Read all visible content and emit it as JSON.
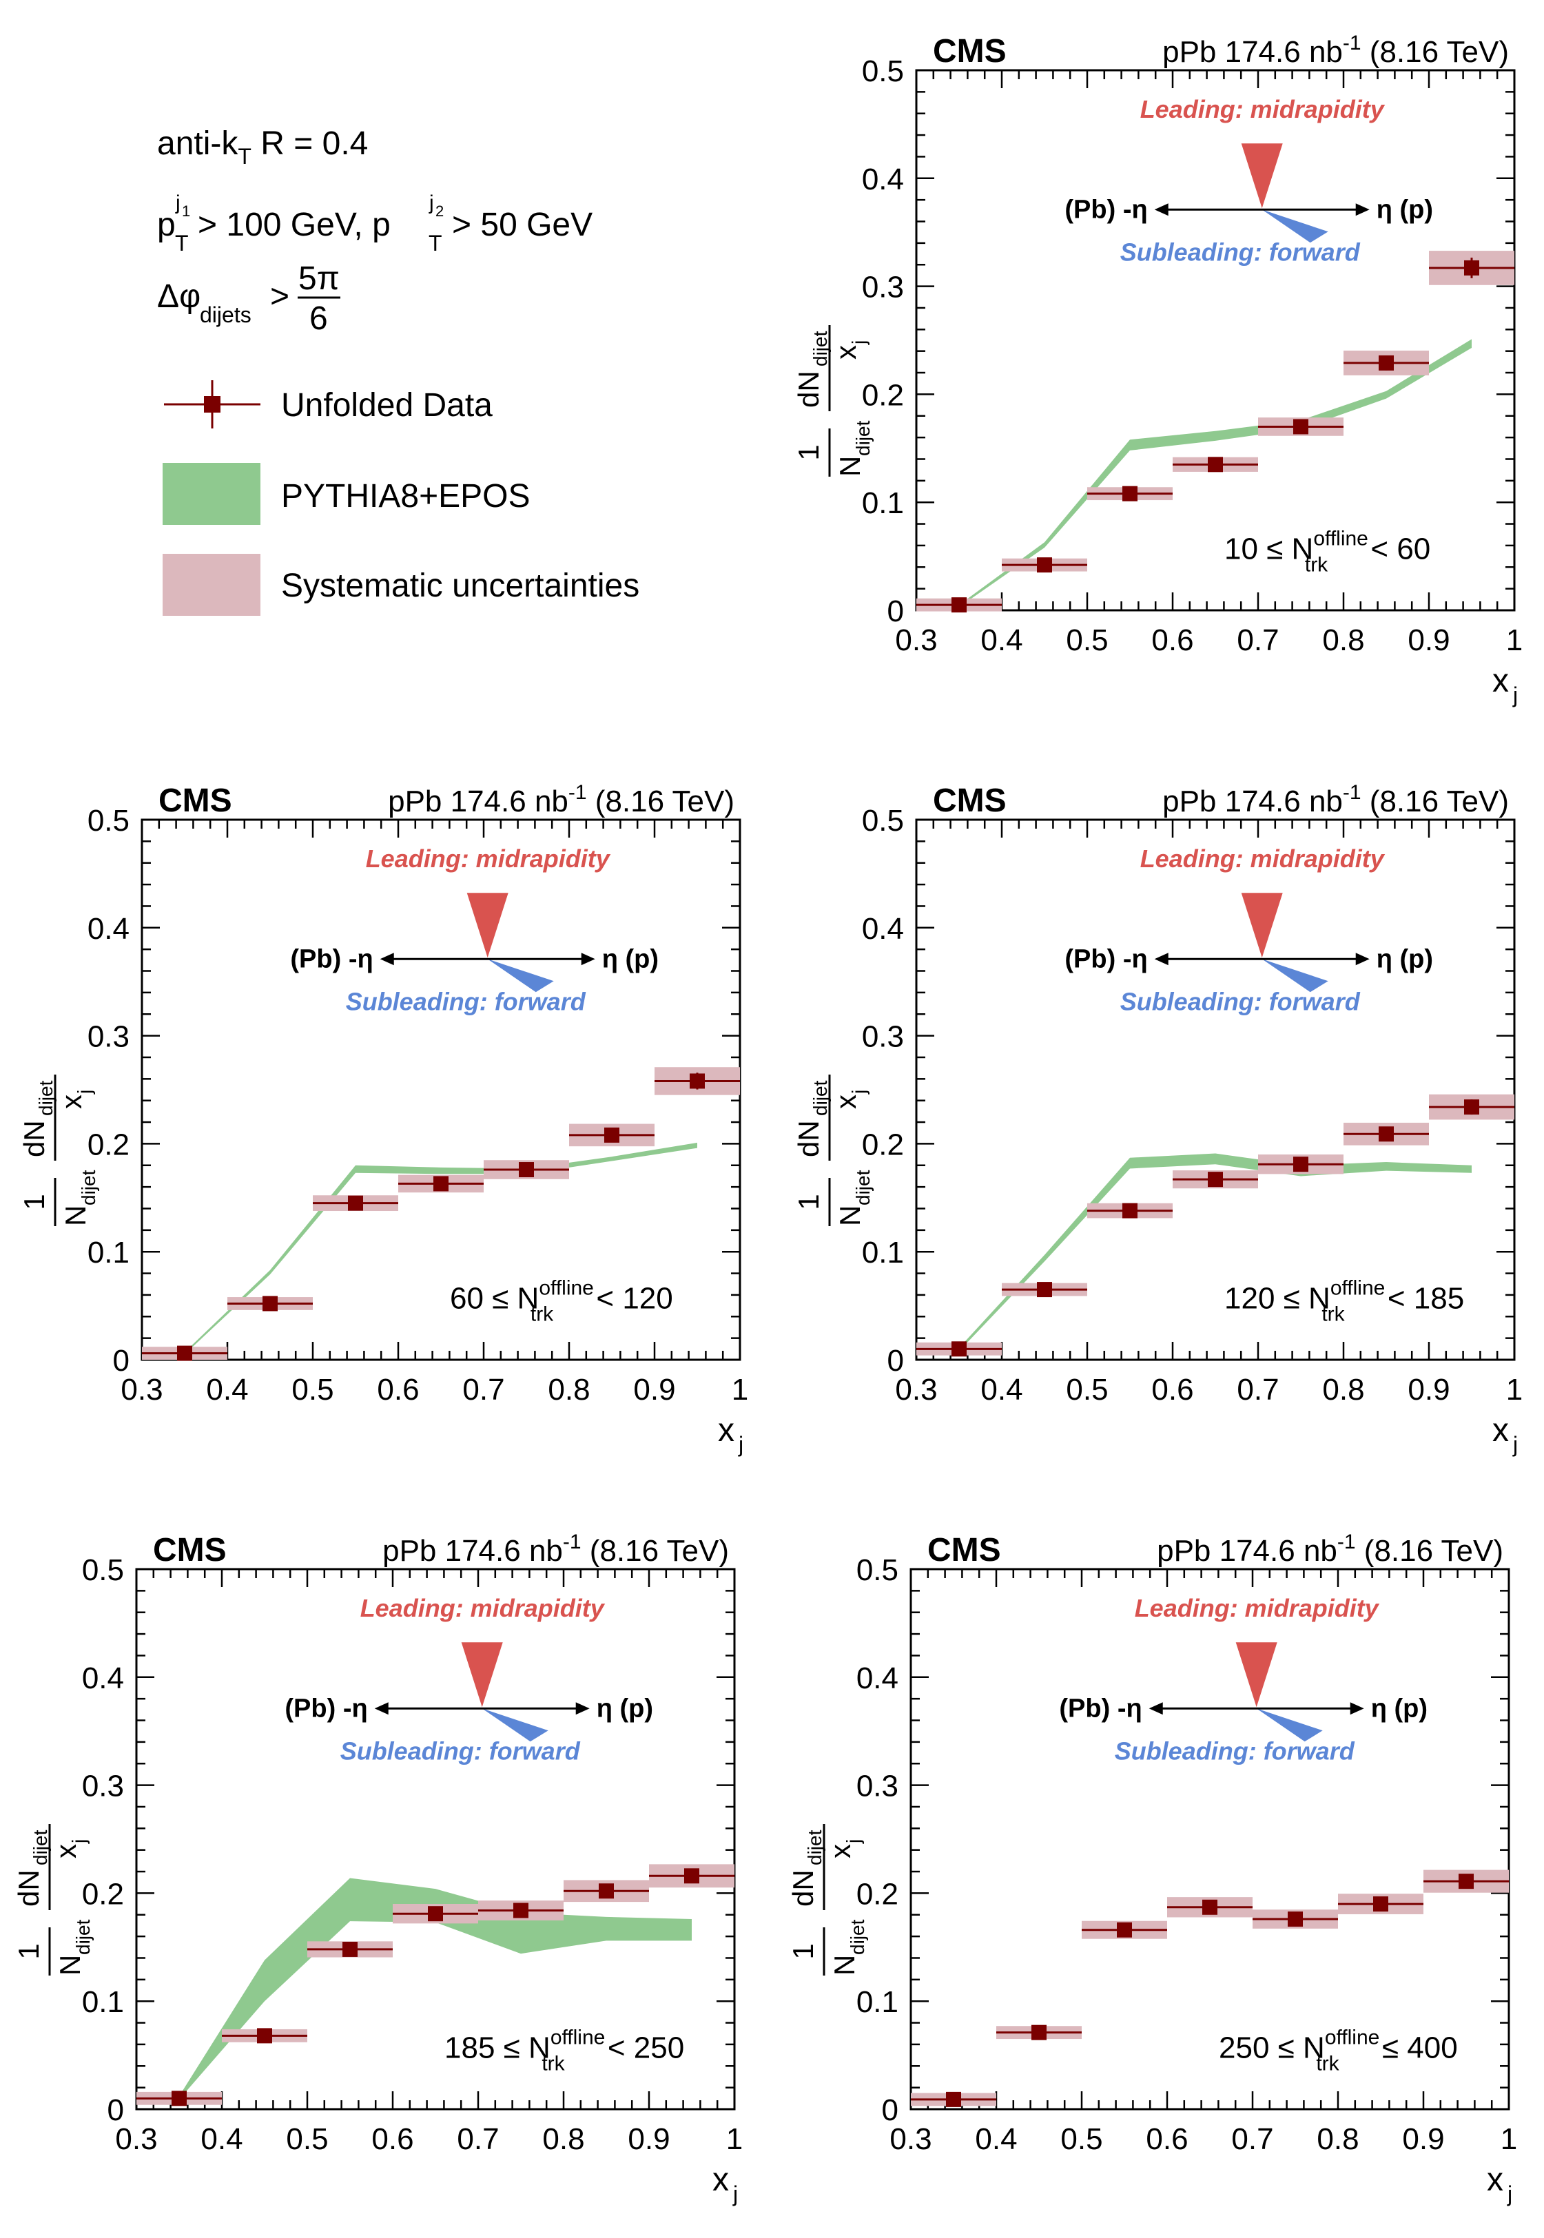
{
  "legend": {
    "jet_algo": "anti-k",
    "jet_algo_sub": "T",
    "jet_radius": " R = 0.4",
    "pt_cut_1": " > 100 GeV, p",
    "pt_cut_2": " > 50 GeV",
    "p": "p",
    "T": "T",
    "j1": "j",
    "j1sub": "1",
    "j2": "j",
    "j2sub": "2",
    "dphi": "Δφ",
    "dphi_sub": "dijets",
    "dphi_gt": ">",
    "frac_num": "5π",
    "frac_den": "6",
    "entries": [
      "Unfolded Data",
      "PYTHIA8+EPOS",
      "Systematic uncertainties"
    ]
  },
  "colors": {
    "data": "#7a0000",
    "model": "#8fc98f",
    "syst": "#dcb8bd",
    "leading": "#d9534f",
    "subleading": "#5b86d6"
  },
  "common": {
    "experiment": "CMS",
    "lumi": "pPb 174.6 nb",
    "lumi_exp": "-1",
    "energy": " (8.16 TeV)",
    "leading_label": "Leading: midrapidity",
    "subleading_label": "Subleading: forward",
    "eta_left": "(Pb) -η",
    "eta_right": "η (p)",
    "ylabel_num": "dN",
    "ylabel_num_sub": "dijet",
    "ylabel_den": "x",
    "ylabel_den_sub": "j",
    "ylabel_pre_num": "1",
    "ylabel_pre_den": "N",
    "ylabel_pre_den_sub": "dijet",
    "xlabel": "x",
    "xlabel_sub": "j",
    "xticks": [
      "0.3",
      "0.4",
      "0.5",
      "0.6",
      "0.7",
      "0.8",
      "0.9",
      "1"
    ],
    "yticks": [
      "0",
      "0.1",
      "0.2",
      "0.3",
      "0.4",
      "0.5"
    ]
  },
  "chart_data": [
    {
      "type": "scatter",
      "panel": "10-60",
      "ntrk_lo": "10",
      "ntrk_op1": "≤",
      "ntrk_op2": "<",
      "ntrk_hi": "60",
      "xlim": [
        0.3,
        1.0
      ],
      "ylim": [
        0,
        0.5
      ],
      "x": [
        0.35,
        0.45,
        0.55,
        0.65,
        0.75,
        0.85,
        0.95
      ],
      "data": [
        0.005,
        0.042,
        0.108,
        0.135,
        0.17,
        0.229,
        0.317
      ],
      "model_x": [
        0.35,
        0.45,
        0.55,
        0.65,
        0.75,
        0.85,
        0.95
      ],
      "model_lo": [
        0.003,
        0.058,
        0.148,
        0.157,
        0.168,
        0.196,
        0.243
      ],
      "model_hi": [
        0.005,
        0.063,
        0.158,
        0.166,
        0.176,
        0.203,
        0.251
      ]
    },
    {
      "type": "scatter",
      "panel": "60-120",
      "ntrk_lo": "60",
      "ntrk_op1": "≤",
      "ntrk_op2": "<",
      "ntrk_hi": "120",
      "xlim": [
        0.3,
        1.0
      ],
      "ylim": [
        0,
        0.5
      ],
      "x": [
        0.35,
        0.45,
        0.55,
        0.65,
        0.75,
        0.85,
        0.95
      ],
      "data": [
        0.006,
        0.052,
        0.145,
        0.163,
        0.176,
        0.208,
        0.258
      ],
      "model_x": [
        0.35,
        0.45,
        0.55,
        0.65,
        0.75,
        0.85,
        0.95
      ],
      "model_lo": [
        0.005,
        0.079,
        0.173,
        0.172,
        0.172,
        0.184,
        0.196
      ],
      "model_hi": [
        0.007,
        0.083,
        0.18,
        0.178,
        0.177,
        0.188,
        0.201
      ]
    },
    {
      "type": "scatter",
      "panel": "120-185",
      "ntrk_lo": "120",
      "ntrk_op1": "≤",
      "ntrk_op2": "<",
      "ntrk_hi": "185",
      "xlim": [
        0.3,
        1.0
      ],
      "ylim": [
        0,
        0.5
      ],
      "x": [
        0.35,
        0.45,
        0.55,
        0.65,
        0.75,
        0.85,
        0.95
      ],
      "data": [
        0.01,
        0.065,
        0.138,
        0.167,
        0.181,
        0.209,
        0.234
      ],
      "model_x": [
        0.35,
        0.45,
        0.55,
        0.65,
        0.75,
        0.85,
        0.95
      ],
      "model_lo": [
        0.008,
        0.091,
        0.177,
        0.181,
        0.17,
        0.175,
        0.173
      ],
      "model_hi": [
        0.011,
        0.097,
        0.187,
        0.191,
        0.18,
        0.183,
        0.18
      ]
    },
    {
      "type": "scatter",
      "panel": "185-250",
      "ntrk_lo": "185",
      "ntrk_op1": "≤",
      "ntrk_op2": "<",
      "ntrk_hi": "250",
      "xlim": [
        0.3,
        1.0
      ],
      "ylim": [
        0,
        0.5
      ],
      "x": [
        0.35,
        0.45,
        0.55,
        0.65,
        0.75,
        0.85,
        0.95
      ],
      "data": [
        0.01,
        0.068,
        0.148,
        0.181,
        0.184,
        0.202,
        0.216
      ],
      "model_x": [
        0.35,
        0.45,
        0.55,
        0.65,
        0.75,
        0.85,
        0.95
      ],
      "model_lo": [
        0.009,
        0.1,
        0.174,
        0.173,
        0.144,
        0.156,
        0.156
      ],
      "model_hi": [
        0.012,
        0.138,
        0.214,
        0.204,
        0.182,
        0.178,
        0.176
      ]
    },
    {
      "type": "scatter",
      "panel": "250-400",
      "ntrk_lo": "250",
      "ntrk_op1": "≤",
      "ntrk_op2": "≤",
      "ntrk_hi": "400",
      "xlim": [
        0.3,
        1.0
      ],
      "ylim": [
        0,
        0.5
      ],
      "x": [
        0.35,
        0.45,
        0.55,
        0.65,
        0.75,
        0.85,
        0.95
      ],
      "data": [
        0.009,
        0.071,
        0.166,
        0.187,
        0.176,
        0.19,
        0.211
      ],
      "model_x": [],
      "model_lo": [],
      "model_hi": []
    }
  ]
}
